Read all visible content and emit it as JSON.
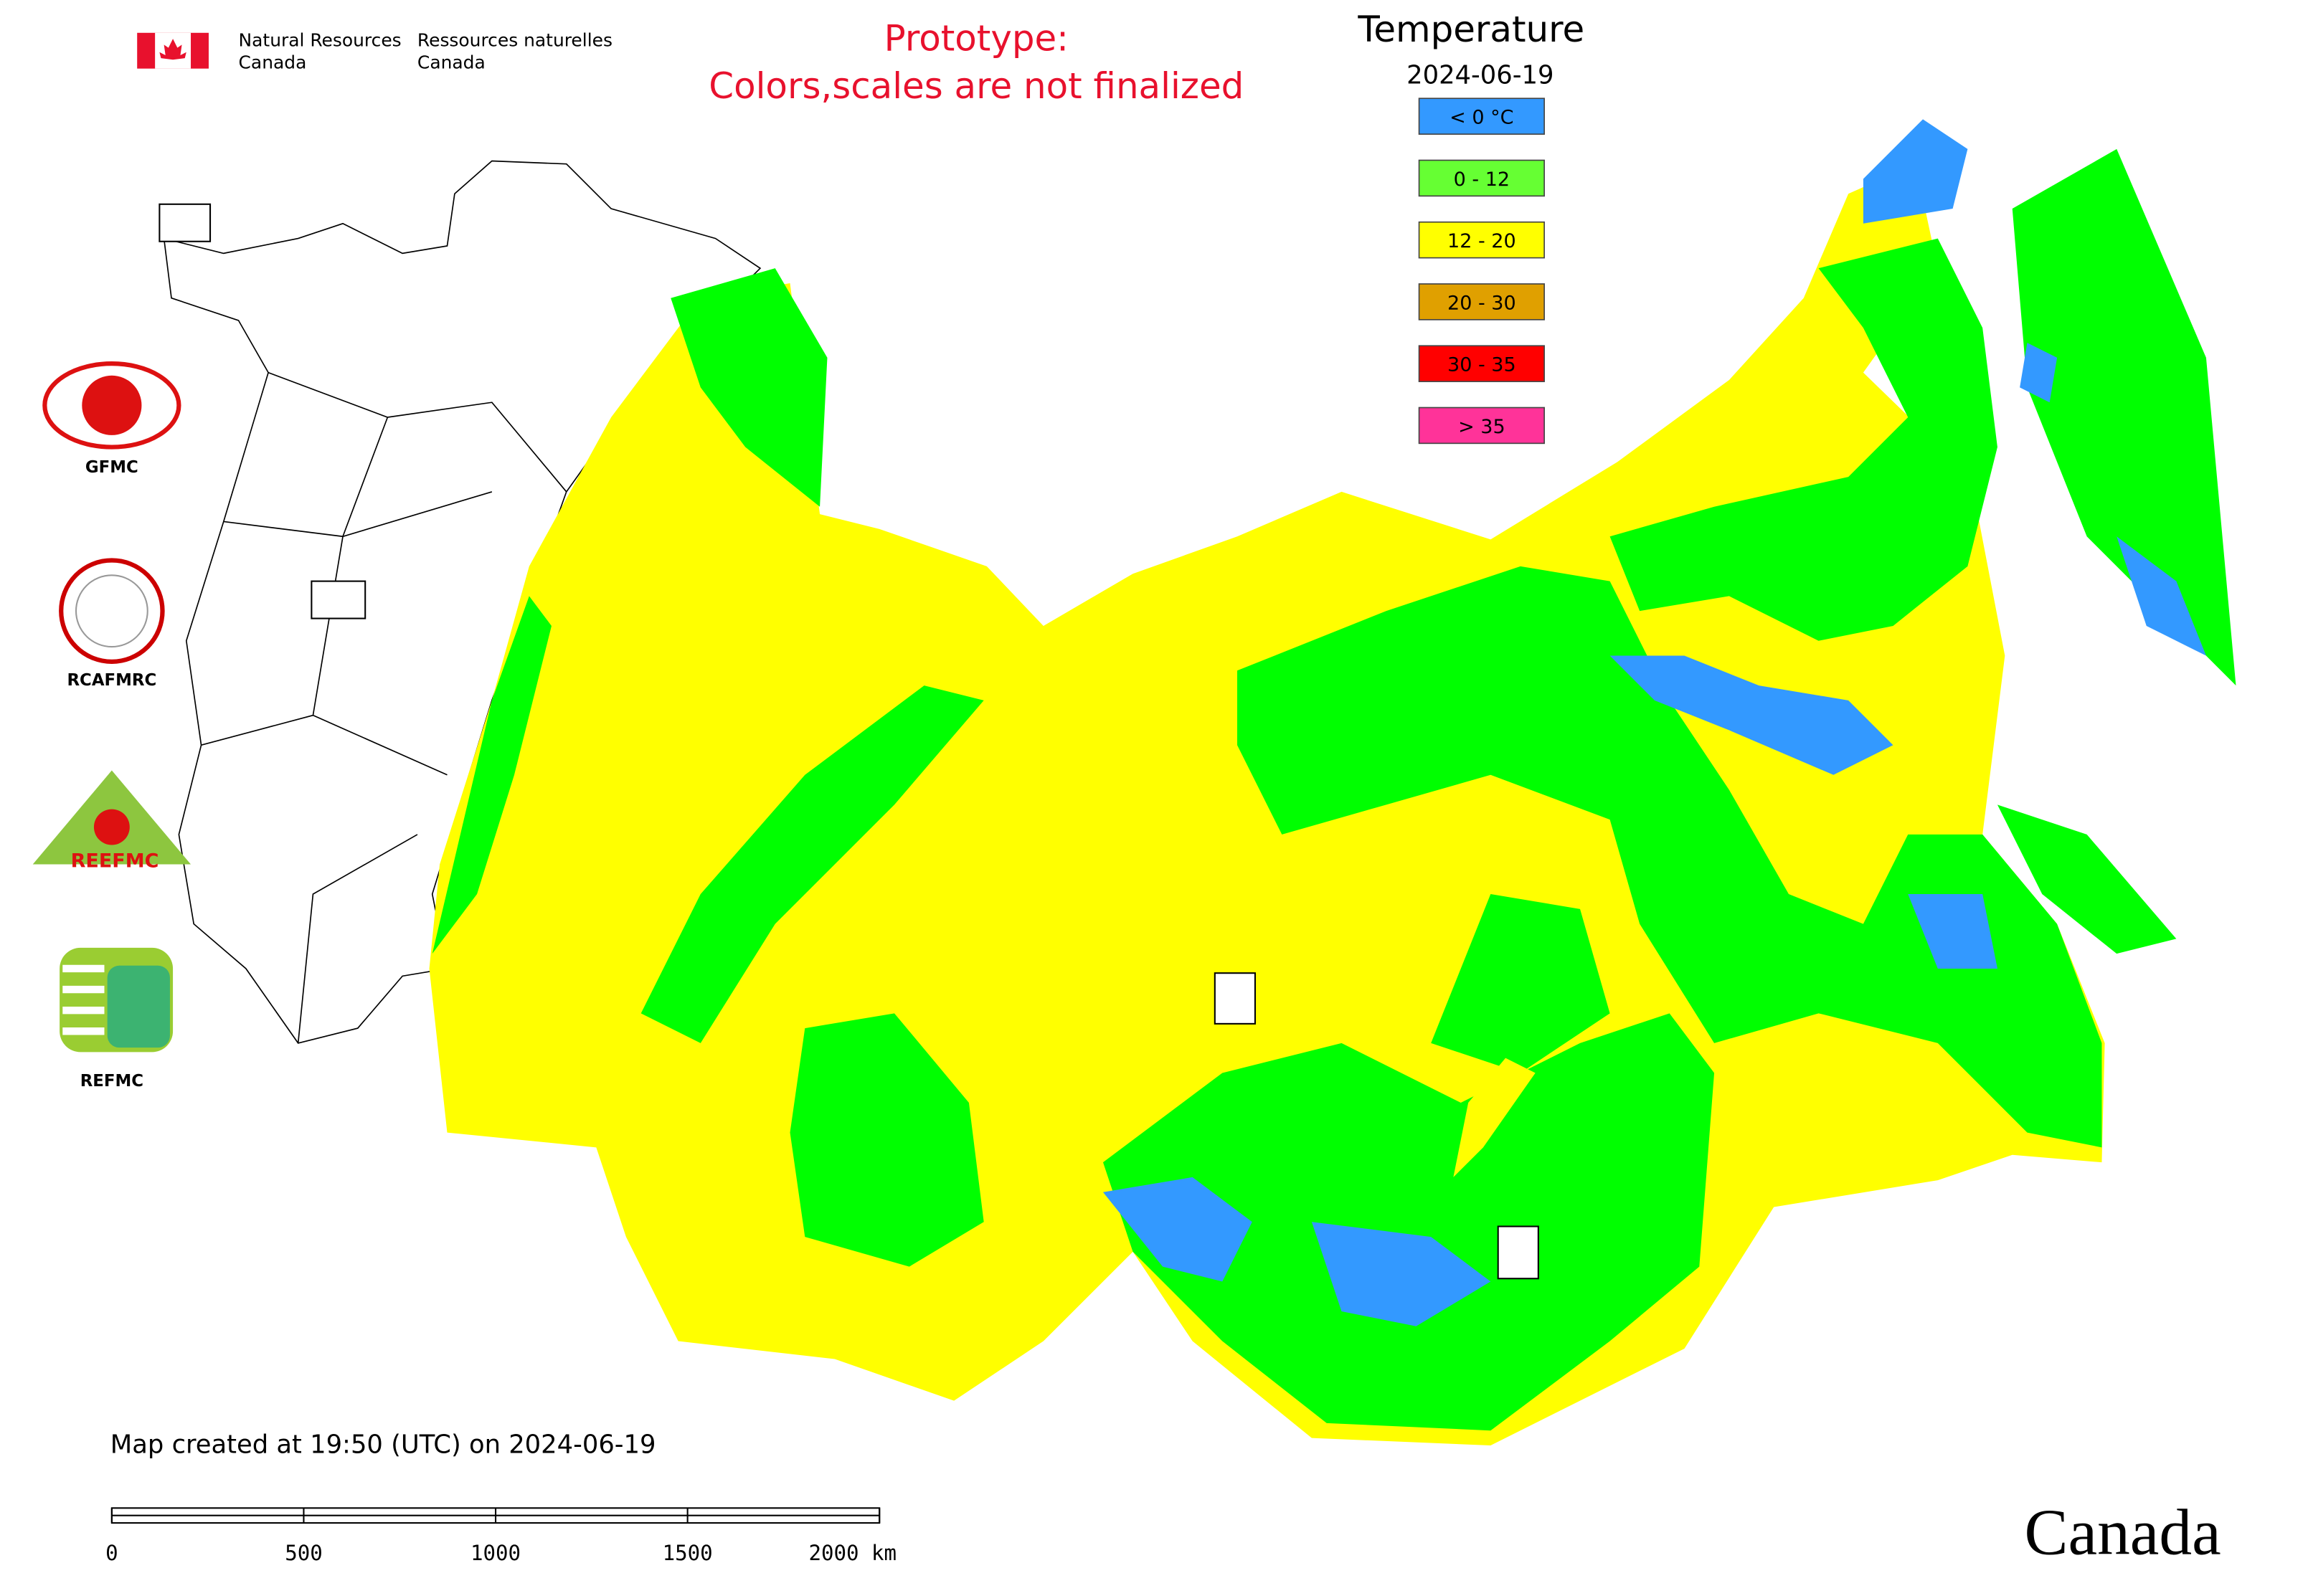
{
  "header": {
    "agency_en": [
      "Natural Resources",
      "Canada"
    ],
    "agency_fr": [
      "Ressources naturelles",
      "Canada"
    ]
  },
  "notice": [
    "Prototype:",
    "Colors,scales are not finalized"
  ],
  "legend": {
    "title": "Temperature",
    "date": "2024-06-19",
    "items": [
      {
        "label": "< 0 °C",
        "color": "#3399ff"
      },
      {
        "label": "0 - 12",
        "color": "#66ff33"
      },
      {
        "label": "12 - 20",
        "color": "#ffff00"
      },
      {
        "label": "20 - 30",
        "color": "#e0a000"
      },
      {
        "label": "30 - 35",
        "color": "#ff0000"
      },
      {
        "label": "> 35",
        "color": "#ff3399"
      }
    ]
  },
  "logos": {
    "gfmc": "GFMC",
    "rcafmrc": "RCAFMRC",
    "reefmc": "REEFMC",
    "refmc": "REFMC"
  },
  "footer": "Map created at 19:50 (UTC) on 2024-06-19",
  "scale_bar": [
    "0",
    "500",
    "1000",
    "1500",
    "2000 km"
  ],
  "wordmark": "Canada"
}
